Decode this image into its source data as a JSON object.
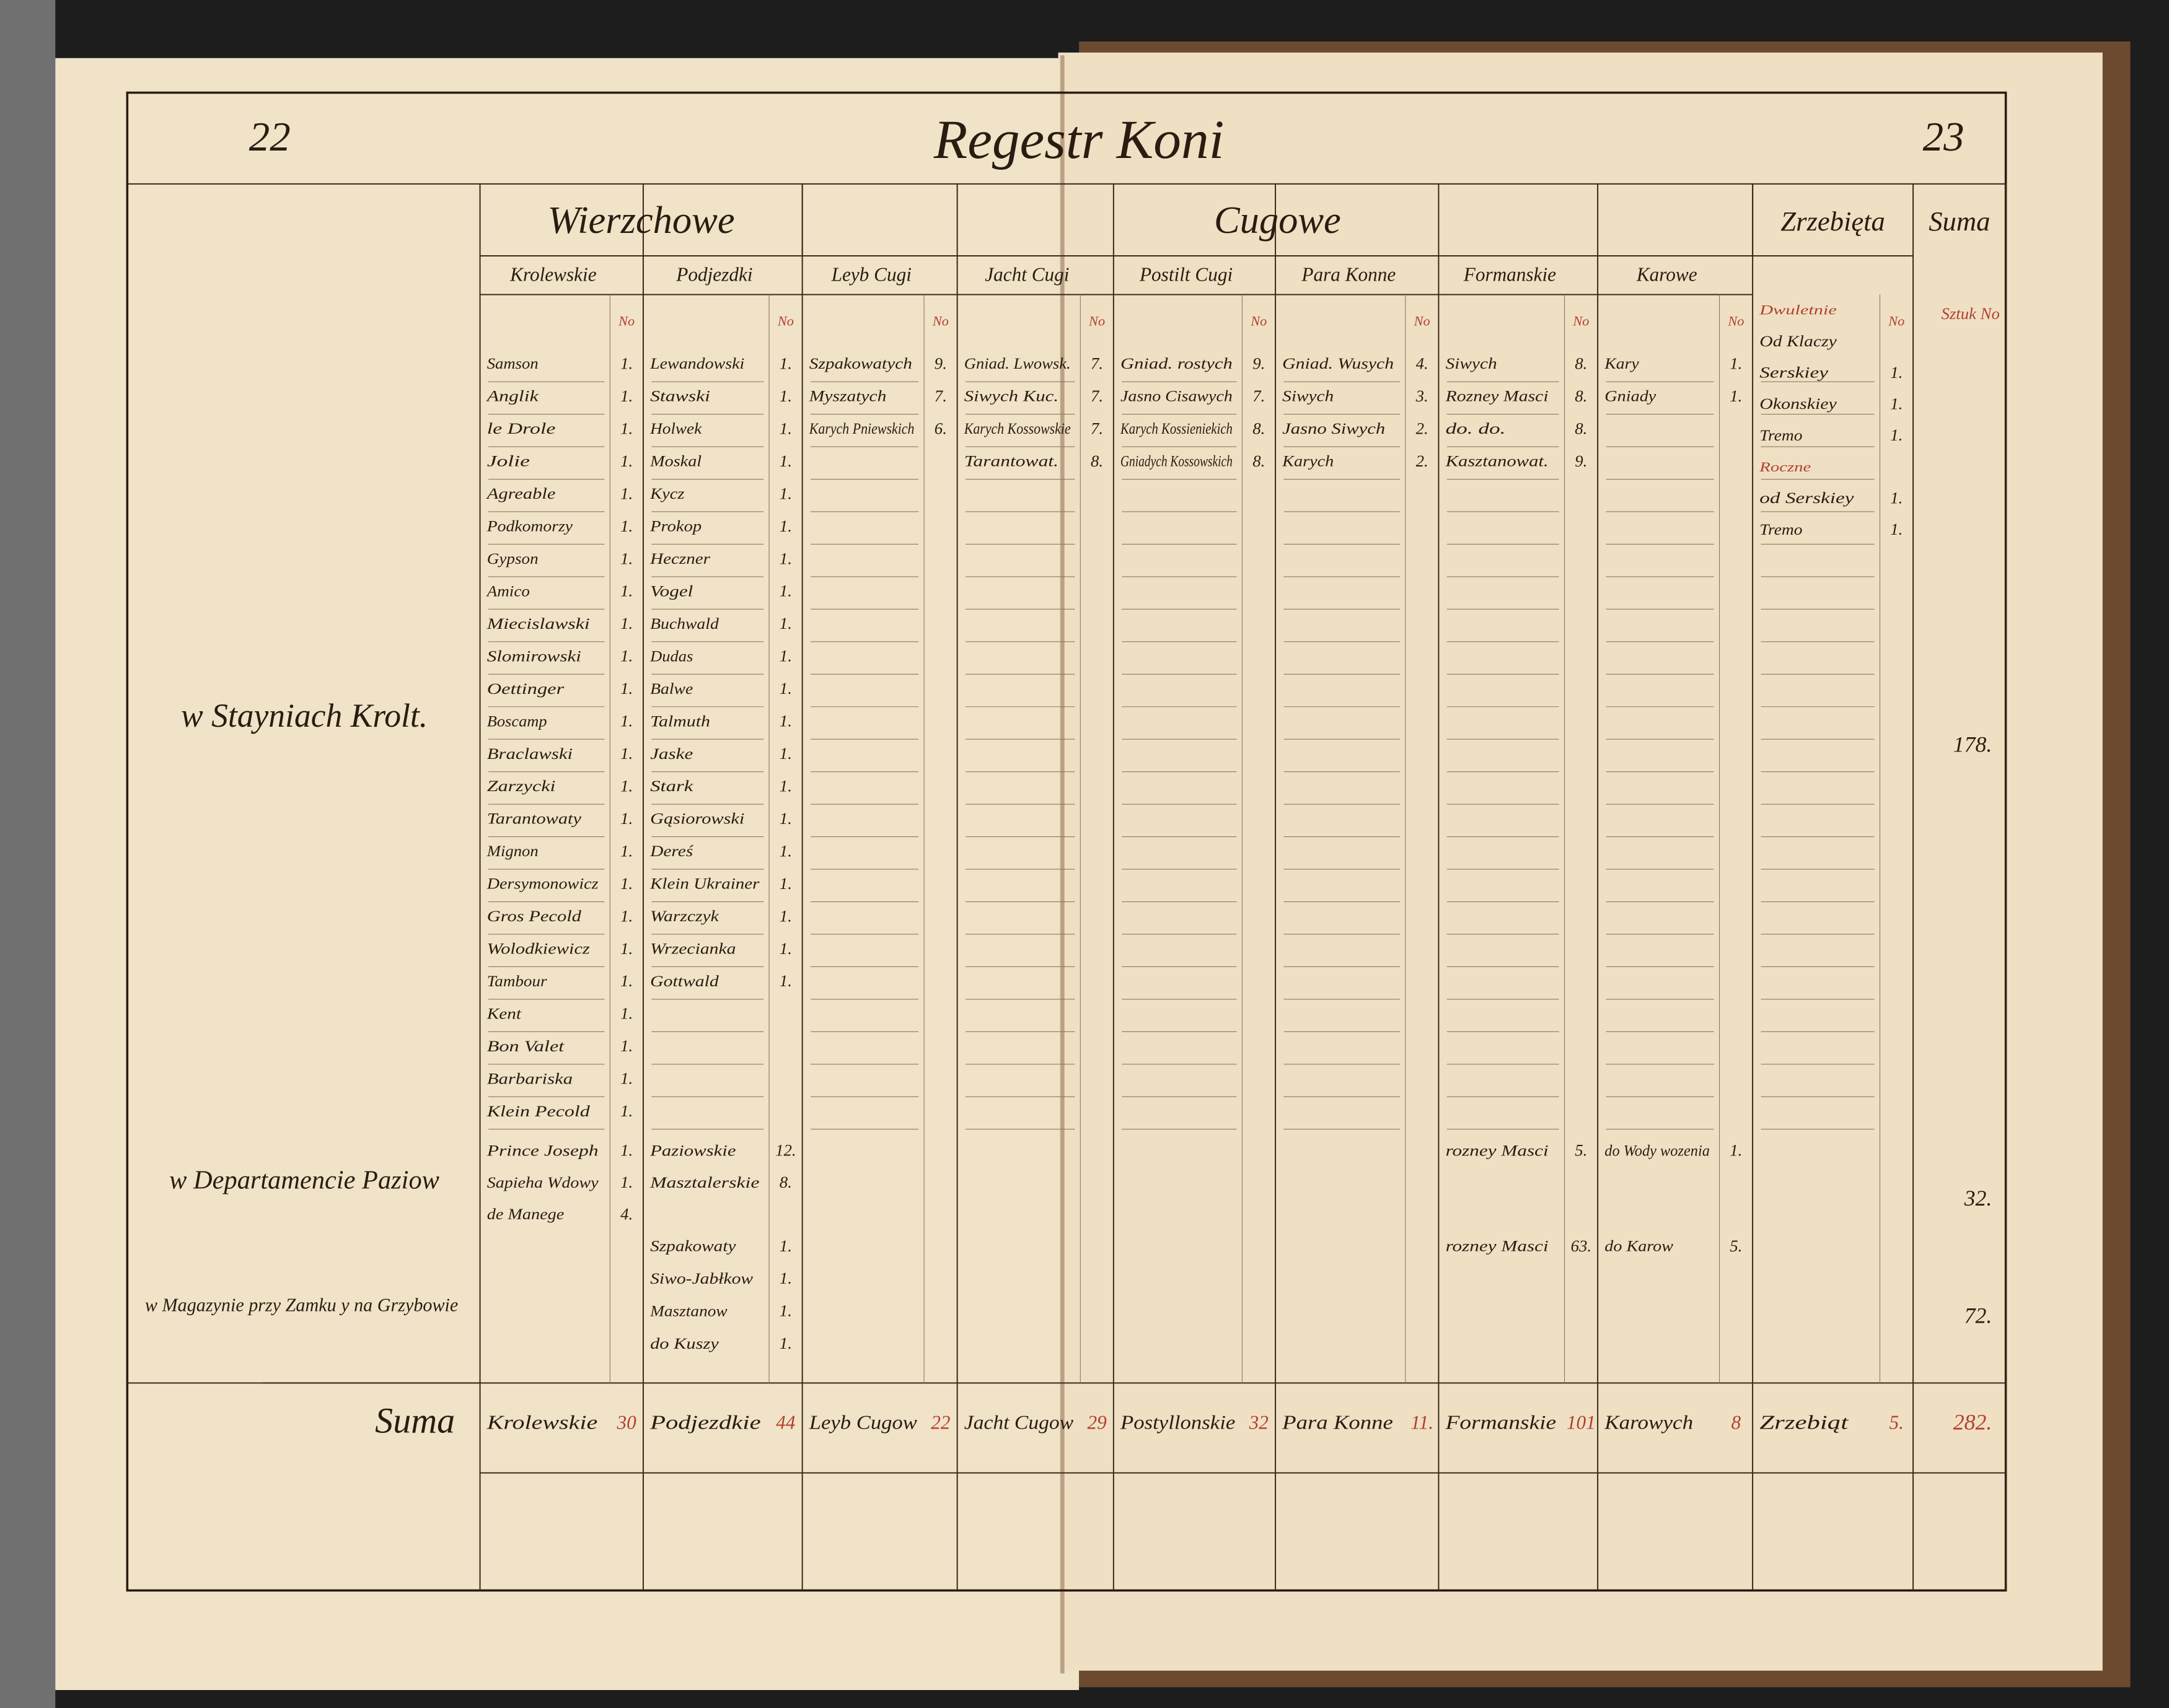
{
  "page_numbers": [
    "22",
    "23"
  ],
  "title": "Regestr Koni",
  "groups": {
    "wierzchowe": "Wierzchowe",
    "cugowe": "Cugowe",
    "zrzebieta": "Zrzebięta",
    "suma": "Suma"
  },
  "row_labels": {
    "stables": "w Stayniach Krolt.",
    "pages": "w Departamencie Paziow",
    "magazine": "w Magazynie przy Zamku y na Grzybowie",
    "suma": "Suma"
  },
  "columns": [
    {
      "header": "Krolewskie",
      "no": "No",
      "stables": [
        {
          "name": "Samson",
          "number": "1."
        },
        {
          "name": "Anglik",
          "number": "1."
        },
        {
          "name": "le Drole",
          "number": "1."
        },
        {
          "name": "Jolie",
          "number": "1."
        },
        {
          "name": "Agreable",
          "number": "1."
        },
        {
          "name": "Podkomorzy",
          "number": "1."
        },
        {
          "name": "Gypson",
          "number": "1."
        },
        {
          "name": "Amico",
          "number": "1."
        },
        {
          "name": "Miecislawski",
          "number": "1."
        },
        {
          "name": "Slomirowski",
          "number": "1."
        },
        {
          "name": "Oettinger",
          "number": "1."
        },
        {
          "name": "Boscamp",
          "number": "1."
        },
        {
          "name": "Braclawski",
          "number": "1."
        },
        {
          "name": "Zarzycki",
          "number": "1."
        },
        {
          "name": "Tarantowaty",
          "number": "1."
        },
        {
          "name": "Mignon",
          "number": "1."
        },
        {
          "name": "Dersymonowicz",
          "number": "1."
        },
        {
          "name": "Gros Pecold",
          "number": "1."
        },
        {
          "name": "Wolodkiewicz",
          "number": "1."
        },
        {
          "name": "Tambour",
          "number": "1."
        },
        {
          "name": "Kent",
          "number": "1."
        },
        {
          "name": "Bon Valet",
          "number": "1."
        },
        {
          "name": "Barbariska",
          "number": "1."
        },
        {
          "name": "Klein Pecold",
          "number": "1."
        }
      ],
      "pages": [
        {
          "name": "Prince Joseph",
          "number": "1."
        },
        {
          "name": "Sapieha Wdowy",
          "number": "1."
        },
        {
          "name": "de Manege",
          "number": "4."
        }
      ],
      "total_label": "Krolewskie",
      "total": "30"
    },
    {
      "header": "Podjezdki",
      "no": "No",
      "stables": [
        {
          "name": "Lewandowski",
          "number": "1."
        },
        {
          "name": "Stawski",
          "number": "1."
        },
        {
          "name": "Holwek",
          "number": "1."
        },
        {
          "name": "Moskal",
          "number": "1."
        },
        {
          "name": "Kycz",
          "number": "1."
        },
        {
          "name": "Prokop",
          "number": "1."
        },
        {
          "name": "Heczner",
          "number": "1."
        },
        {
          "name": "Vogel",
          "number": "1."
        },
        {
          "name": "Buchwald",
          "number": "1."
        },
        {
          "name": "Dudas",
          "number": "1."
        },
        {
          "name": "Balwe",
          "number": "1."
        },
        {
          "name": "Talmuth",
          "number": "1."
        },
        {
          "name": "Jaske",
          "number": "1."
        },
        {
          "name": "Stark",
          "number": "1."
        },
        {
          "name": "Gąsiorowski",
          "number": "1."
        },
        {
          "name": "Dereś",
          "number": "1."
        },
        {
          "name": "Klein Ukrainer",
          "number": "1."
        },
        {
          "name": "Warzczyk",
          "number": "1."
        },
        {
          "name": "Wrzecianka",
          "number": "1."
        },
        {
          "name": "Gottwald",
          "number": "1."
        }
      ],
      "pages": [
        {
          "name": "Paziowskie",
          "number": "12."
        },
        {
          "name": "Masztalerskie",
          "number": "8."
        }
      ],
      "magazine": [
        {
          "name": "Szpakowaty",
          "number": "1."
        },
        {
          "name": "Siwo-Jabłkow",
          "number": "1."
        },
        {
          "name": "Masztanow",
          "number": "1."
        },
        {
          "name": "do Kuszy",
          "number": "1."
        }
      ],
      "total_label": "Podjezdkie",
      "total": "44"
    },
    {
      "header": "Leyb Cugi",
      "no": "No",
      "stables": [
        {
          "name": "Szpakowatych",
          "number": "9."
        },
        {
          "name": "Myszatych",
          "number": "7."
        },
        {
          "name": "Karych Pniewskich",
          "number": "6."
        }
      ],
      "total_label": "Leyb Cugow",
      "total": "22"
    },
    {
      "header": "Jacht Cugi",
      "no": "No",
      "stables": [
        {
          "name": "Gniad. Lwowsk.",
          "number": "7."
        },
        {
          "name": "Siwych Kuc.",
          "number": "7."
        },
        {
          "name": "Karych Kossowskie",
          "number": "7."
        },
        {
          "name": "Tarantowat.",
          "number": "8."
        }
      ],
      "total_label": "Jacht Cugow",
      "total": "29"
    },
    {
      "header": "Postilt Cugi",
      "no": "No",
      "stables": [
        {
          "name": "Gniad. rostych",
          "number": "9."
        },
        {
          "name": "Jasno Cisawych",
          "number": "7."
        },
        {
          "name": "Karych Kossieniekich",
          "number": "8."
        },
        {
          "name": "Gniadych Kossowskich",
          "number": "8."
        }
      ],
      "total_label": "Postyllonskie",
      "total": "32"
    },
    {
      "header": "Para Konne",
      "no": "No",
      "stables": [
        {
          "name": "Gniad. Wusych",
          "number": "4."
        },
        {
          "name": "Siwych",
          "number": "3."
        },
        {
          "name": "Jasno Siwych",
          "number": "2."
        },
        {
          "name": "Karych",
          "number": "2."
        }
      ],
      "total_label": "Para Konne",
      "total": "11."
    },
    {
      "header": "Formanskie",
      "no": "No",
      "stables": [
        {
          "name": "Siwych",
          "number": "8."
        },
        {
          "name": "Rozney Masci",
          "number": "8."
        },
        {
          "name": "do. do.",
          "number": "8."
        },
        {
          "name": "Kasztanowat.",
          "number": "9."
        }
      ],
      "pages": [
        {
          "name": "rozney Masci",
          "number": "5."
        }
      ],
      "magazine": [
        {
          "name": "rozney Masci",
          "number": "63."
        }
      ],
      "total_label": "Formanskie",
      "total": "101"
    },
    {
      "header": "Karowe",
      "no": "No",
      "stables": [
        {
          "name": "Kary",
          "number": "1."
        },
        {
          "name": "Gniady",
          "number": "1."
        }
      ],
      "pages": [
        {
          "name": "do Wody wozenia",
          "number": "1."
        }
      ],
      "magazine": [
        {
          "name": "do Karow",
          "number": "5."
        }
      ],
      "total_label": "Karowych",
      "total": "8"
    },
    {
      "no": "No",
      "stables": [
        {
          "name": "Dwuletnie"
        },
        {
          "name": "Od Klaczy"
        },
        {
          "name": "Serskiey",
          "number": "1."
        },
        {
          "name": "Okonskiey",
          "number": "1."
        },
        {
          "name": "Tremo",
          "number": "1."
        },
        {
          "name": "Roczne"
        },
        {
          "name": "od Serskiey",
          "number": "1."
        },
        {
          "name": "Tremo",
          "number": "1."
        }
      ],
      "total_label": "Zrzebiąt",
      "total": "5."
    }
  ],
  "suma_column": {
    "header": "Sztuk No",
    "stables": "178.",
    "pages": "32.",
    "magazine": "72.",
    "total": "282."
  }
}
